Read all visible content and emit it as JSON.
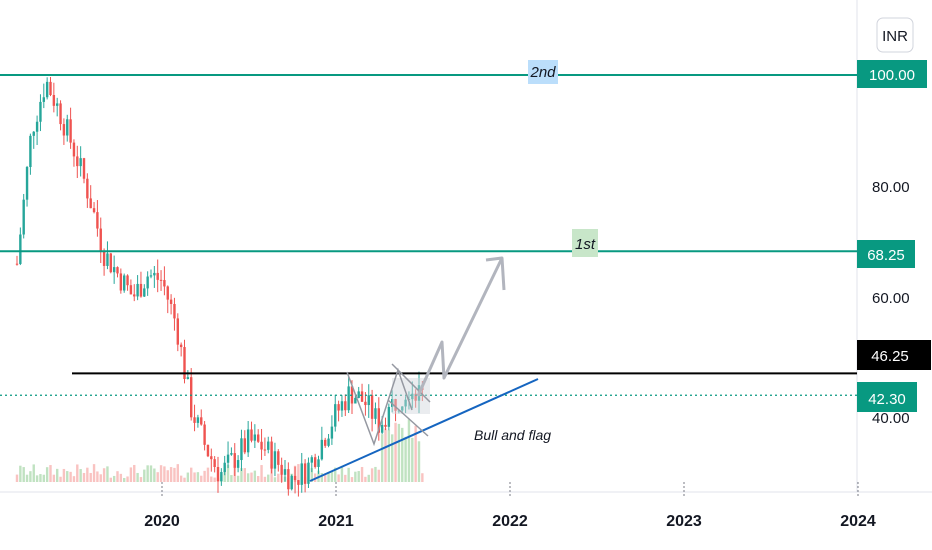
{
  "currency": "INR",
  "colors": {
    "up": "#26a69a",
    "down": "#ef5350",
    "level": "#089981",
    "resistance": "#000000",
    "trendline": "#1565c0",
    "projection": "#b2b5be",
    "current": "#089981"
  },
  "chart_data": {
    "type": "candlestick",
    "x_ticks": [
      "2020",
      "2021",
      "2022",
      "2023",
      "2024"
    ],
    "y_ticks": [
      "80.00",
      "60.00",
      "40.00"
    ],
    "levels": [
      {
        "price": 100.0,
        "label": "100.00",
        "tag": "2nd"
      },
      {
        "price": 68.25,
        "label": "68.25",
        "tag": "1st"
      }
    ],
    "resistance": {
      "price": 46.25,
      "label": "46.25"
    },
    "current": {
      "price": 42.3,
      "label": "42.30"
    },
    "annotation": "Bull and flag",
    "price_path": [
      {
        "t": "2019-03",
        "p": 66
      },
      {
        "t": "2019-04",
        "p": 90
      },
      {
        "t": "2019-05",
        "p": 99
      },
      {
        "t": "2019-06",
        "p": 93
      },
      {
        "t": "2019-07",
        "p": 86
      },
      {
        "t": "2019-08",
        "p": 78
      },
      {
        "t": "2019-09",
        "p": 68
      },
      {
        "t": "2019-10",
        "p": 64
      },
      {
        "t": "2019-11",
        "p": 60
      },
      {
        "t": "2019-12",
        "p": 64
      },
      {
        "t": "2020-01",
        "p": 63
      },
      {
        "t": "2020-02",
        "p": 55
      },
      {
        "t": "2020-03",
        "p": 40
      },
      {
        "t": "2020-04",
        "p": 33
      },
      {
        "t": "2020-05",
        "p": 28
      },
      {
        "t": "2020-06",
        "p": 31
      },
      {
        "t": "2020-07",
        "p": 34
      },
      {
        "t": "2020-08",
        "p": 33
      },
      {
        "t": "2020-09",
        "p": 30
      },
      {
        "t": "2020-10",
        "p": 27
      },
      {
        "t": "2020-11",
        "p": 29
      },
      {
        "t": "2020-12",
        "p": 34
      },
      {
        "t": "2021-01",
        "p": 39
      },
      {
        "t": "2021-02",
        "p": 43
      },
      {
        "t": "2021-03",
        "p": 41
      },
      {
        "t": "2021-04",
        "p": 37
      },
      {
        "t": "2021-05",
        "p": 41
      },
      {
        "t": "2021-06",
        "p": 44
      },
      {
        "t": "2021-07",
        "p": 42.3
      }
    ]
  }
}
